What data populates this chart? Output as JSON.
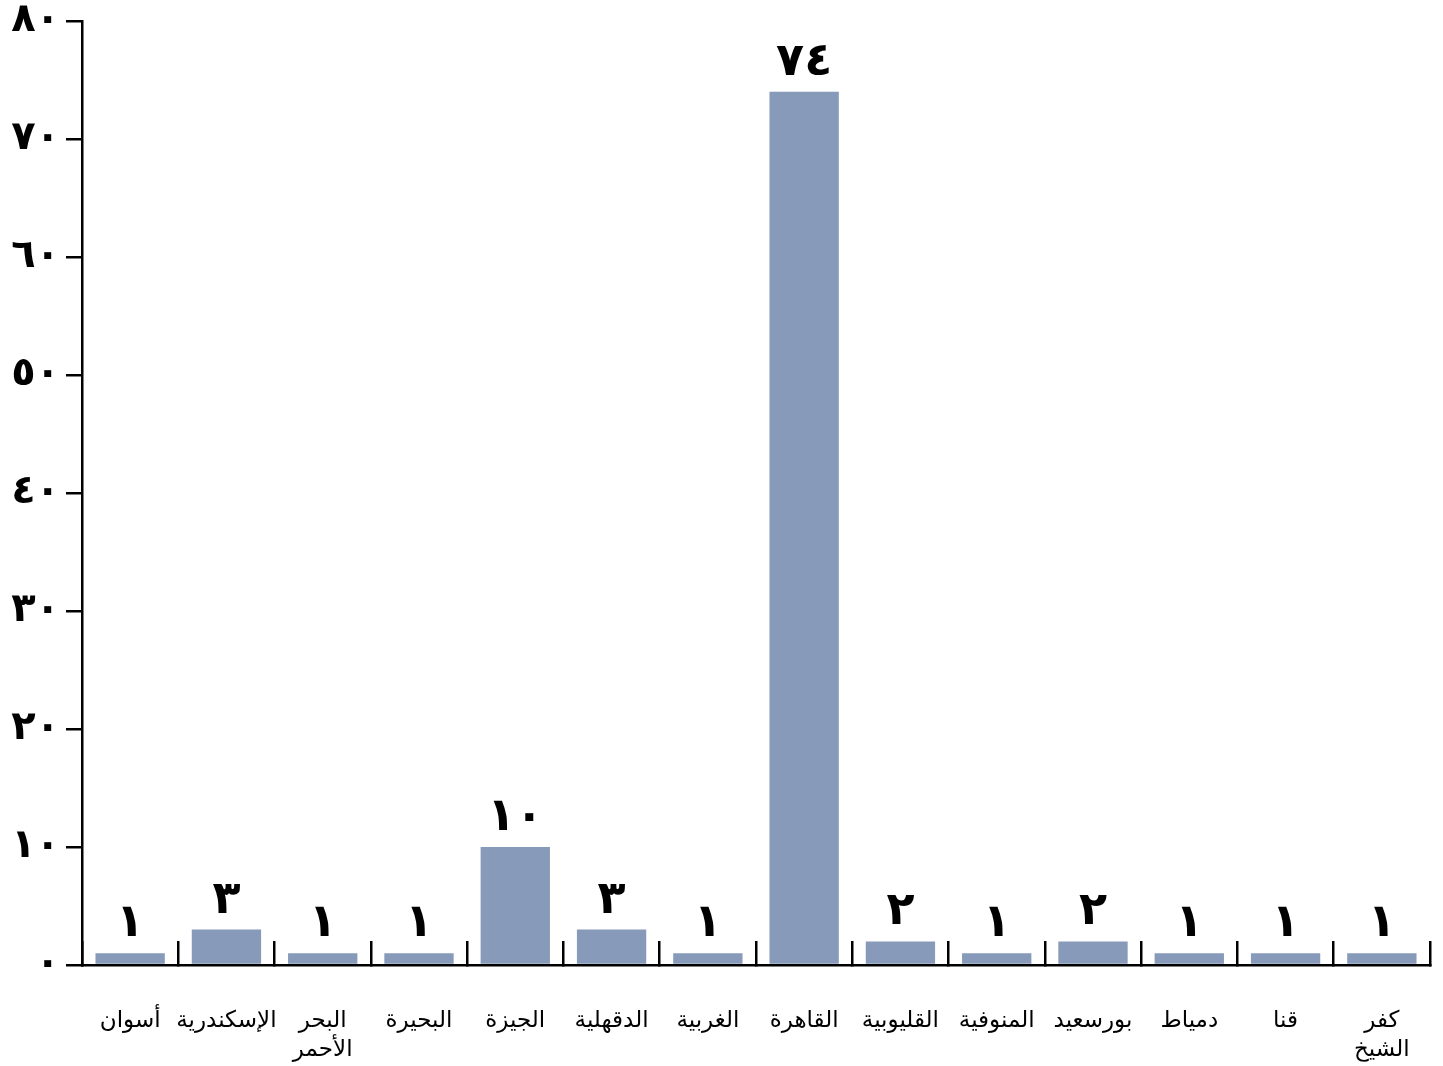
{
  "chart_data": {
    "type": "bar",
    "categories": [
      "أسوان",
      "الإسكندرية",
      "البحر الأحمر",
      "البحيرة",
      "الجيزة",
      "الدقهلية",
      "الغربية",
      "القاهرة",
      "القليوبية",
      "المنوفية",
      "بورسعيد",
      "دمياط",
      "قنا",
      "كفر الشيخ"
    ],
    "values": [
      1,
      3,
      1,
      1,
      10,
      3,
      1,
      74,
      2,
      1,
      2,
      1,
      1,
      1
    ],
    "value_labels": [
      "١",
      "٣",
      "١",
      "١",
      "١٠",
      "٣",
      "١",
      "٧٤",
      "٢",
      "١",
      "٢",
      "١",
      "١",
      "١"
    ],
    "color": "#879ab9",
    "ylim": [
      0,
      80
    ],
    "yticks": [
      {
        "value": 0,
        "label": "٠"
      },
      {
        "value": 10,
        "label": "١٠"
      },
      {
        "value": 20,
        "label": "٢٠"
      },
      {
        "value": 30,
        "label": "٣٠"
      },
      {
        "value": 40,
        "label": "٤٠"
      },
      {
        "value": 50,
        "label": "٥٠"
      },
      {
        "value": 60,
        "label": "٦٠"
      },
      {
        "value": 70,
        "label": "٧٠"
      },
      {
        "value": 80,
        "label": "٨٠"
      }
    ],
    "grid": false,
    "legend": false
  }
}
